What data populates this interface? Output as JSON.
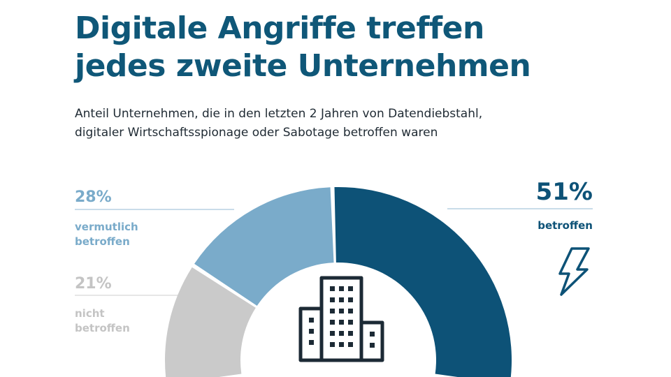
{
  "header": {
    "title_line1": "Digitale Angriffe treffen",
    "title_line2": "jedes zweite Unternehmen",
    "subtitle_line1": "Anteil Unternehmen, die in den letzten 2 Jahren von Datendiebstahl,",
    "subtitle_line2": "digitaler Wirtschaftsspionage oder Sabotage betroffen waren"
  },
  "chart_data": {
    "type": "pie",
    "variant": "half-donut",
    "slices": [
      {
        "value_label": "21%",
        "value": 21,
        "label_line1": "nicht",
        "label_line2": "betroffen",
        "color": "#cacaca"
      },
      {
        "value_label": "28%",
        "value": 28,
        "label_line1": "vermutlich",
        "label_line2": "betroffen",
        "color": "#7aabca"
      },
      {
        "value_label": "51%",
        "value": 51,
        "label_line1": "betroffen",
        "label_line2": "",
        "color": "#0d5277"
      }
    ]
  },
  "icons": {
    "center": "office-building-icon",
    "accent": "lightning-bolt-icon"
  }
}
